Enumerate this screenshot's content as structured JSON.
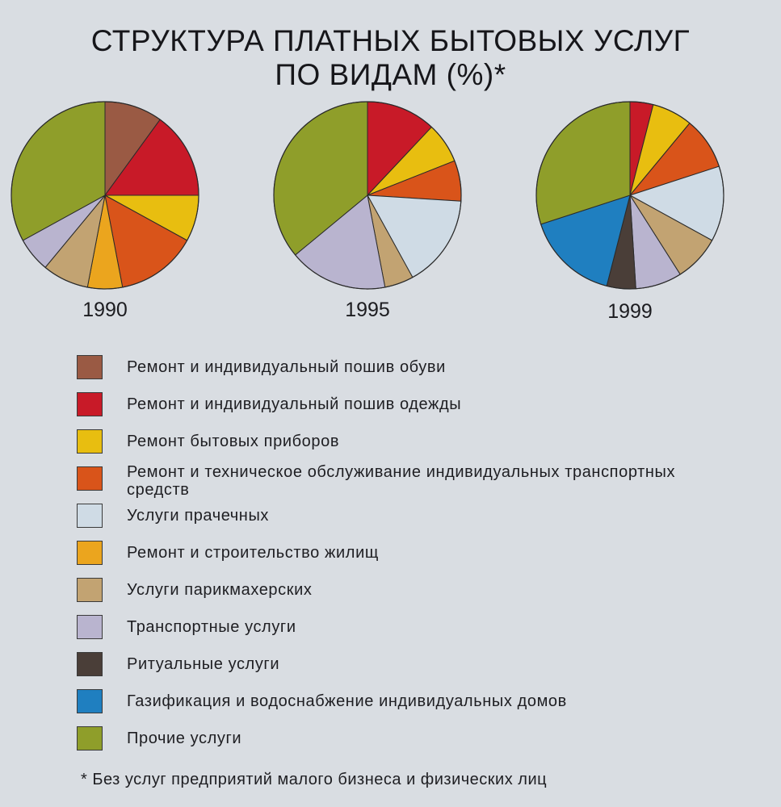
{
  "title_line1": "СТРУКТУРА ПЛАТНЫХ БЫТОВЫХ УСЛУГ",
  "title_line2": "ПО ВИДАМ (%)*",
  "footnote": "* Без услуг предприятий малого бизнеса и физических лиц",
  "chart_data": {
    "type": "pie",
    "categories": [
      "Ремонт и индивидуальный пошив обуви",
      "Ремонт и индивидуальный пошив одежды",
      "Ремонт бытовых приборов",
      "Ремонт и техническое обслуживание индивидуальных транспортных средств",
      "Услуги прачечных",
      "Ремонт и строительство жилищ",
      "Услуги парикмахерских",
      "Транспортные услуги",
      "Ритуальные услуги",
      "Газификация и водоснабжение индивидуальных домов",
      "Прочие услуги"
    ],
    "colors": [
      "#9a5a44",
      "#c81a28",
      "#e8be10",
      "#d9541a",
      "#cfdbe5",
      "#eba51e",
      "#c2a372",
      "#b9b4cf",
      "#4a3e38",
      "#1f7fc0",
      "#8f9e2a"
    ],
    "series": [
      {
        "name": "1990",
        "values": [
          10,
          15,
          8,
          14,
          0,
          6,
          8,
          6,
          0,
          0,
          33
        ]
      },
      {
        "name": "1995",
        "values": [
          0,
          12,
          7,
          7,
          16,
          0,
          5,
          17,
          0,
          0,
          36
        ]
      },
      {
        "name": "1999",
        "values": [
          0,
          4,
          7,
          9,
          13,
          0,
          8,
          8,
          5,
          16,
          30
        ]
      }
    ]
  }
}
